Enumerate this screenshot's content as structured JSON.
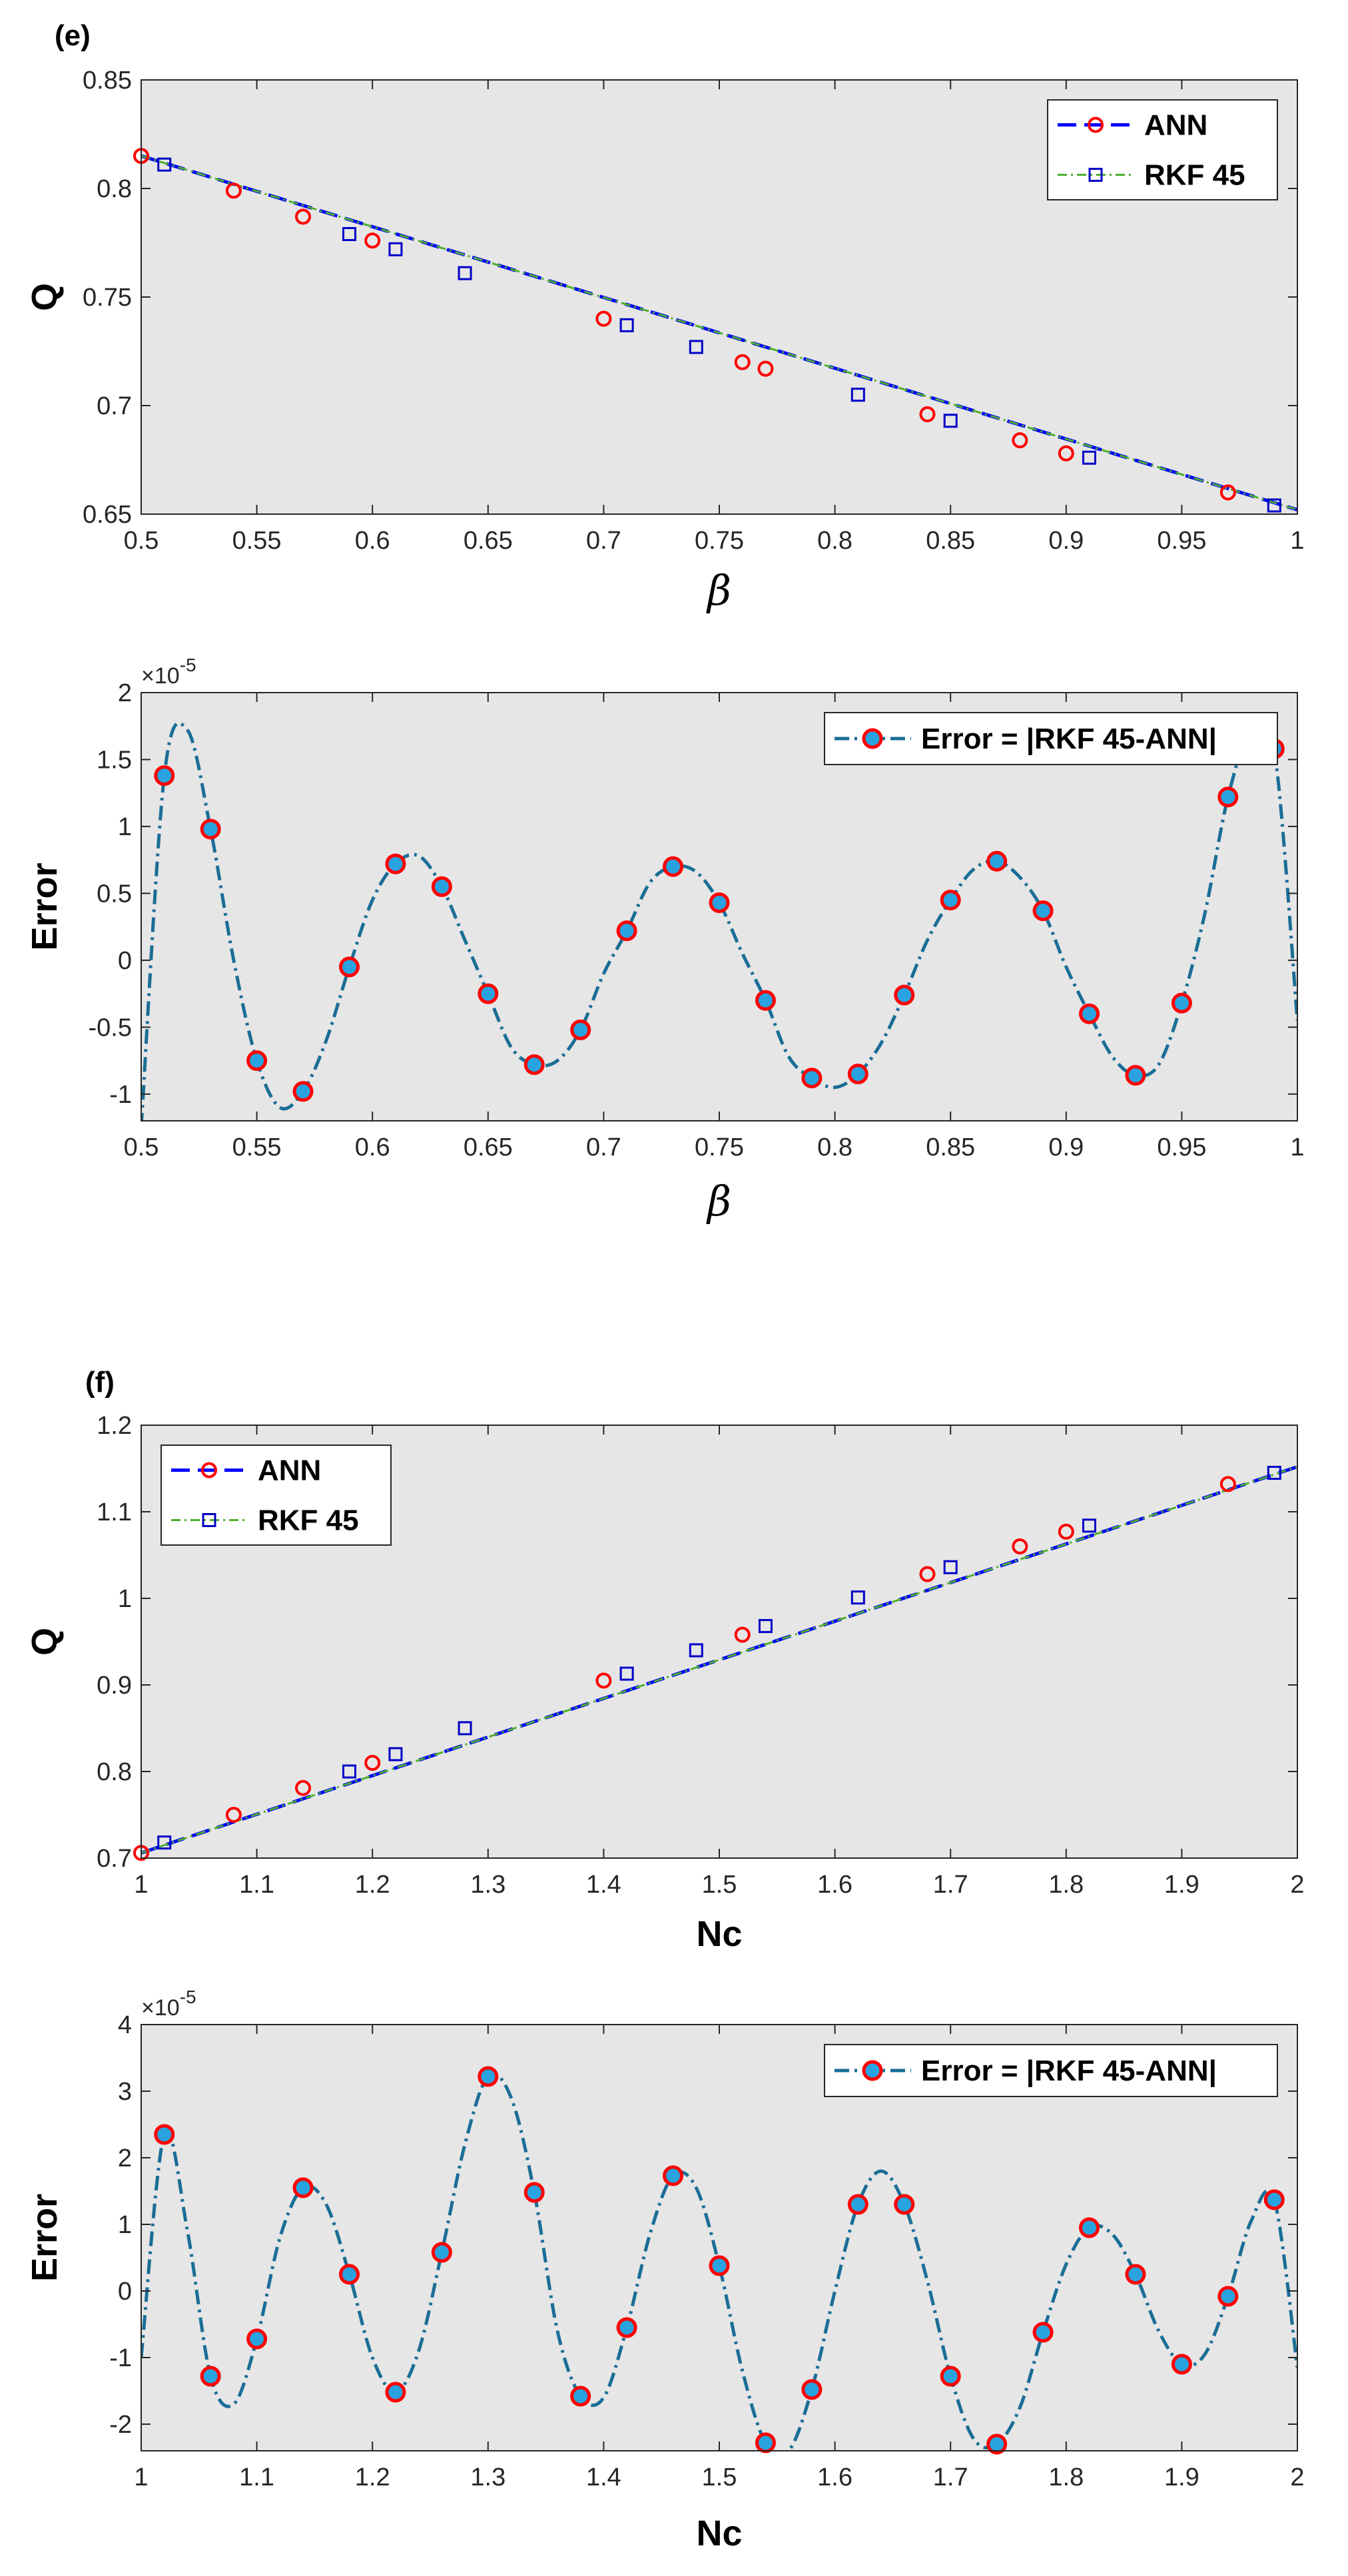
{
  "chart_data": [
    {
      "panel_label": "(e)",
      "type": "line",
      "xlabel": "β",
      "ylabel": "Q",
      "xlim": [
        0.5,
        1
      ],
      "ylim": [
        0.65,
        0.85
      ],
      "xticks": [
        0.5,
        0.55,
        0.6,
        0.65,
        0.7,
        0.75,
        0.8,
        0.85,
        0.9,
        0.95,
        1
      ],
      "xtick_labels": [
        "0.5",
        "0.55",
        "0.6",
        "0.65",
        "0.7",
        "0.75",
        "0.8",
        "0.85",
        "0.9",
        "0.95",
        "1"
      ],
      "yticks": [
        0.65,
        0.7,
        0.75,
        0.8,
        0.85
      ],
      "ytick_labels": [
        "0.65",
        "0.7",
        "0.75",
        "0.8",
        "0.85"
      ],
      "legend_position": "top-right",
      "series": [
        {
          "name": "ANN",
          "color": "#0000ff",
          "marker_color": "#ff0000",
          "line_x": [
            0.5,
            1.0
          ],
          "line_y": [
            0.815,
            0.652
          ],
          "marker_x": [
            0.5,
            0.54,
            0.57,
            0.6,
            0.7,
            0.76,
            0.77,
            0.84,
            0.88,
            0.9,
            0.97
          ],
          "marker_y": [
            0.815,
            0.799,
            0.787,
            0.776,
            0.74,
            0.72,
            0.717,
            0.696,
            0.684,
            0.678,
            0.66
          ]
        },
        {
          "name": "RKF 45",
          "color": "#4daf2e",
          "marker_color": "#0000c8",
          "line_x": [
            0.5,
            1.0
          ],
          "line_y": [
            0.815,
            0.652
          ],
          "marker_x": [
            0.51,
            0.59,
            0.61,
            0.64,
            0.71,
            0.74,
            0.81,
            0.85,
            0.91,
            0.99
          ],
          "marker_y": [
            0.811,
            0.779,
            0.772,
            0.761,
            0.737,
            0.727,
            0.705,
            0.693,
            0.676,
            0.654
          ]
        }
      ]
    },
    {
      "type": "line",
      "xlabel": "β",
      "ylabel": "Error",
      "exponent_label": "×10",
      "exponent_power": "-5",
      "xlim": [
        0.5,
        1
      ],
      "ylim": [
        -1.2,
        2
      ],
      "xticks": [
        0.5,
        0.55,
        0.6,
        0.65,
        0.7,
        0.75,
        0.8,
        0.85,
        0.9,
        0.95,
        1
      ],
      "xtick_labels": [
        "0.5",
        "0.55",
        "0.6",
        "0.65",
        "0.7",
        "0.75",
        "0.8",
        "0.85",
        "0.9",
        "0.95",
        "1"
      ],
      "yticks": [
        -1,
        -0.5,
        0,
        0.5,
        1,
        1.5,
        2
      ],
      "ytick_labels": [
        "-1",
        "-0.5",
        "0",
        "0.5",
        "1",
        "1.5",
        "2"
      ],
      "legend_position": "top-right",
      "series": [
        {
          "name": "Error = |RKF 45-ANN|",
          "color": "#1a6e96",
          "marker_color": "#ff0000",
          "marker_fill": "#29a3e0",
          "line_x": [
            0.5,
            0.51,
            0.52,
            0.53,
            0.54,
            0.55,
            0.56,
            0.57,
            0.58,
            0.59,
            0.6,
            0.61,
            0.62,
            0.63,
            0.64,
            0.65,
            0.66,
            0.67,
            0.68,
            0.69,
            0.7,
            0.71,
            0.72,
            0.73,
            0.74,
            0.75,
            0.76,
            0.77,
            0.78,
            0.79,
            0.8,
            0.81,
            0.82,
            0.83,
            0.84,
            0.85,
            0.86,
            0.87,
            0.88,
            0.89,
            0.9,
            0.91,
            0.92,
            0.93,
            0.94,
            0.95,
            0.96,
            0.97,
            0.98,
            0.99,
            1.0
          ],
          "line_y": [
            -1.25,
            1.38,
            1.72,
            0.98,
            0.0,
            -0.75,
            -1.1,
            -0.98,
            -0.6,
            -0.05,
            0.45,
            0.72,
            0.78,
            0.55,
            0.15,
            -0.25,
            -0.65,
            -0.78,
            -0.75,
            -0.52,
            -0.1,
            0.22,
            0.58,
            0.7,
            0.66,
            0.43,
            0.05,
            -0.3,
            -0.72,
            -0.88,
            -0.95,
            -0.85,
            -0.62,
            -0.26,
            0.15,
            0.45,
            0.68,
            0.74,
            0.62,
            0.37,
            -0.05,
            -0.4,
            -0.72,
            -0.86,
            -0.78,
            -0.32,
            0.35,
            1.22,
            1.72,
            1.58,
            -0.45
          ],
          "marker_x": [
            0.51,
            0.53,
            0.55,
            0.57,
            0.59,
            0.61,
            0.63,
            0.65,
            0.67,
            0.69,
            0.71,
            0.73,
            0.75,
            0.77,
            0.79,
            0.81,
            0.83,
            0.85,
            0.87,
            0.89,
            0.91,
            0.93,
            0.95,
            0.97,
            0.99
          ],
          "marker_y": [
            1.38,
            0.98,
            -0.75,
            -0.98,
            -0.05,
            0.72,
            0.55,
            -0.25,
            -0.78,
            -0.52,
            0.22,
            0.7,
            0.43,
            -0.3,
            -0.88,
            -0.85,
            -0.26,
            0.45,
            0.74,
            0.37,
            -0.4,
            -0.86,
            -0.32,
            1.22,
            1.58
          ]
        }
      ]
    },
    {
      "panel_label": "(f)",
      "type": "line",
      "xlabel": "Nc",
      "ylabel": "Q",
      "xlim": [
        1,
        2
      ],
      "ylim": [
        0.7,
        1.2
      ],
      "xticks": [
        1,
        1.1,
        1.2,
        1.3,
        1.4,
        1.5,
        1.6,
        1.7,
        1.8,
        1.9,
        2
      ],
      "xtick_labels": [
        "1",
        "1.1",
        "1.2",
        "1.3",
        "1.4",
        "1.5",
        "1.6",
        "1.7",
        "1.8",
        "1.9",
        "2"
      ],
      "yticks": [
        0.7,
        0.8,
        0.9,
        1,
        1.1,
        1.2
      ],
      "ytick_labels": [
        "0.7",
        "0.8",
        "0.9",
        "1",
        "1.1",
        "1.2"
      ],
      "legend_position": "top-left",
      "series": [
        {
          "name": "ANN",
          "color": "#0000ff",
          "marker_color": "#ff0000",
          "line_x": [
            1.0,
            2.0
          ],
          "line_y": [
            0.706,
            1.152
          ],
          "marker_x": [
            1.0,
            1.08,
            1.14,
            1.2,
            1.4,
            1.52,
            1.68,
            1.76,
            1.8,
            1.94
          ],
          "marker_y": [
            0.706,
            0.75,
            0.781,
            0.81,
            0.905,
            0.958,
            1.028,
            1.06,
            1.077,
            1.132
          ]
        },
        {
          "name": "RKF 45",
          "color": "#4daf2e",
          "marker_color": "#0000c8",
          "line_x": [
            1.0,
            2.0
          ],
          "line_y": [
            0.706,
            1.152
          ],
          "marker_x": [
            1.02,
            1.18,
            1.22,
            1.28,
            1.42,
            1.48,
            1.54,
            1.62,
            1.7,
            1.82,
            1.98
          ],
          "marker_y": [
            0.718,
            0.8,
            0.82,
            0.85,
            0.913,
            0.94,
            0.968,
            1.001,
            1.036,
            1.084,
            1.145
          ]
        }
      ]
    },
    {
      "type": "line",
      "xlabel": "Nc",
      "ylabel": "Error",
      "exponent_label": "×10",
      "exponent_power": "-5",
      "xlim": [
        1,
        2
      ],
      "ylim": [
        -2.4,
        4
      ],
      "xticks": [
        1,
        1.1,
        1.2,
        1.3,
        1.4,
        1.5,
        1.6,
        1.7,
        1.8,
        1.9,
        2
      ],
      "xtick_labels": [
        "1",
        "1.1",
        "1.2",
        "1.3",
        "1.4",
        "1.5",
        "1.6",
        "1.7",
        "1.8",
        "1.9",
        "2"
      ],
      "yticks": [
        -2,
        -1,
        0,
        1,
        2,
        3,
        4
      ],
      "ytick_labels": [
        "-2",
        "-1",
        "0",
        "1",
        "2",
        "3",
        "4"
      ],
      "legend_position": "top-right",
      "series": [
        {
          "name": "Error = |RKF 45-ANN|",
          "color": "#1a6e96",
          "marker_color": "#ff0000",
          "marker_fill": "#29a3e0",
          "line_x": [
            1.0,
            1.02,
            1.04,
            1.06,
            1.08,
            1.1,
            1.12,
            1.14,
            1.16,
            1.18,
            1.2,
            1.22,
            1.24,
            1.26,
            1.28,
            1.3,
            1.32,
            1.34,
            1.36,
            1.38,
            1.4,
            1.42,
            1.44,
            1.46,
            1.48,
            1.5,
            1.52,
            1.54,
            1.56,
            1.58,
            1.6,
            1.62,
            1.64,
            1.66,
            1.68,
            1.7,
            1.72,
            1.74,
            1.76,
            1.78,
            1.8,
            1.82,
            1.84,
            1.86,
            1.88,
            1.9,
            1.92,
            1.94,
            1.96,
            1.98,
            2.0
          ],
          "line_y": [
            -1.0,
            2.35,
            0.9,
            -1.28,
            -1.7,
            -0.72,
            0.8,
            1.55,
            1.3,
            0.25,
            -1.0,
            -1.52,
            -0.9,
            0.58,
            2.2,
            3.22,
            2.9,
            1.48,
            -0.6,
            -1.58,
            -1.6,
            -0.55,
            0.85,
            1.73,
            1.55,
            0.38,
            -1.2,
            -2.28,
            -2.4,
            -1.48,
            0.0,
            1.3,
            1.8,
            1.3,
            0.15,
            -1.28,
            -2.22,
            -2.3,
            -1.75,
            -0.62,
            0.4,
            0.95,
            0.85,
            0.25,
            -0.6,
            -1.1,
            -0.95,
            -0.08,
            1.05,
            1.37,
            -1.15
          ],
          "marker_x": [
            1.02,
            1.06,
            1.1,
            1.14,
            1.18,
            1.22,
            1.26,
            1.3,
            1.34,
            1.38,
            1.42,
            1.46,
            1.5,
            1.54,
            1.58,
            1.62,
            1.66,
            1.7,
            1.74,
            1.78,
            1.82,
            1.86,
            1.9,
            1.94,
            1.98
          ],
          "marker_y": [
            2.35,
            -1.28,
            -0.72,
            1.55,
            0.25,
            -1.52,
            0.58,
            3.22,
            1.48,
            -1.58,
            -0.55,
            1.73,
            0.38,
            -2.28,
            -1.48,
            1.3,
            1.3,
            -1.28,
            -2.3,
            -0.62,
            0.95,
            0.25,
            -1.1,
            -0.08,
            1.37
          ]
        }
      ]
    }
  ]
}
